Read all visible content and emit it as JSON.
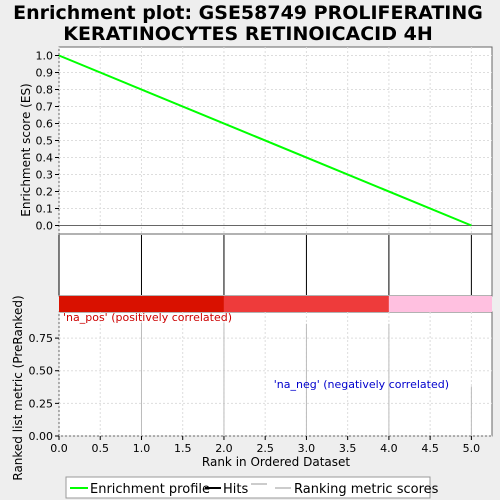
{
  "chart_data": {
    "title_line1": "Enrichment plot: GSE58749 PROLIFERATING",
    "title_line2": "KERATINOCYTES RETINOICACID 4H",
    "enrichment": {
      "type": "line",
      "ylabel": "Enrichment score (ES)",
      "ylim": [
        -0.05,
        1.05
      ],
      "yticks": [
        "0.0",
        "0.1",
        "0.2",
        "0.3",
        "0.4",
        "0.5",
        "0.6",
        "0.7",
        "0.8",
        "0.9",
        "1.0"
      ],
      "series": [
        {
          "name": "Enrichment profile",
          "color": "#00ff00",
          "x": [
            0,
            5
          ],
          "y": [
            1.0,
            0.0
          ]
        }
      ]
    },
    "hits": {
      "x": [
        0,
        1,
        2,
        3,
        4,
        5
      ]
    },
    "color_bar": [
      {
        "from": 0,
        "to": 2,
        "color": "#d91100"
      },
      {
        "from": 2,
        "to": 4,
        "color": "#ee3b3b"
      },
      {
        "from": 4,
        "to": 5.25,
        "color": "#ffc0e0"
      }
    ],
    "ranked_metric": {
      "type": "bar",
      "xlabel": "Rank in Ordered Dataset",
      "ylabel": "Ranked list metric (PreRanked)",
      "xlim": [
        0,
        5.25
      ],
      "ylim": [
        0,
        0.95
      ],
      "xticks": [
        "0.0",
        "0.5",
        "1.0",
        "1.5",
        "2.0",
        "2.5",
        "3.0",
        "3.5",
        "4.0",
        "4.5",
        "5.0"
      ],
      "yticks": [
        "0.00",
        "0.25",
        "0.50",
        "0.75"
      ],
      "x": [
        1,
        2,
        3,
        4,
        5
      ],
      "values": [
        0.87,
        0.87,
        0.86,
        0.86,
        0.38
      ],
      "pos_label": "'na_pos' (positively correlated)",
      "neg_label": "'na_neg' (negatively correlated)",
      "pos_color": "#cc0000",
      "neg_color": "#0000cc"
    },
    "legend": [
      {
        "label": "Enrichment profile",
        "color": "#00ff00"
      },
      {
        "label": "Hits",
        "color": "#000000"
      },
      {
        "label": "Ranking metric scores",
        "color": "#cccccc"
      }
    ]
  }
}
